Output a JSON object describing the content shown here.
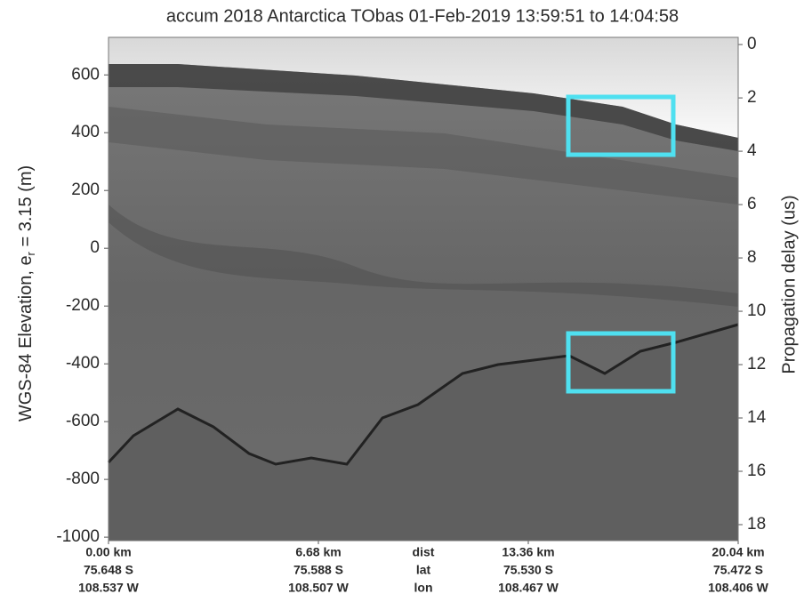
{
  "chart_data": {
    "type": "echogram",
    "title": "accum 2018 Antarctica TObas 01-Feb-2019 13:59:51 to 14:04:58",
    "y_label": {
      "main": "WGS-84 Elevation, e",
      "subscript": "r",
      "rest": " = 3.15 (m)"
    },
    "y2_label": "Propagation delay (us)",
    "ylim": [
      -1012,
      730
    ],
    "yticks": [
      -1000,
      -800,
      -600,
      -400,
      -200,
      0,
      200,
      400,
      600
    ],
    "y2lim": [
      -0.27,
      18.6
    ],
    "y2ticks": [
      0,
      2,
      4,
      6,
      8,
      10,
      12,
      14,
      16,
      18
    ],
    "xlim": [
      0,
      20.04
    ],
    "xticks": [
      {
        "value": 0,
        "label": "0.00 km"
      },
      {
        "value": 6.68,
        "label": "6.68 km"
      },
      {
        "value": 13.36,
        "label": "13.36 km"
      },
      {
        "value": 20.04,
        "label": "20.04 km"
      }
    ],
    "lat_labels": [
      "75.648 S",
      "75.588 S",
      "75.530 S",
      "75.472 S"
    ],
    "lon_labels": [
      "108.537 W",
      "108.507 W",
      "108.467 W",
      "108.406 W"
    ],
    "row_labels": [
      "dist",
      "lat",
      "lon"
    ]
  }
}
